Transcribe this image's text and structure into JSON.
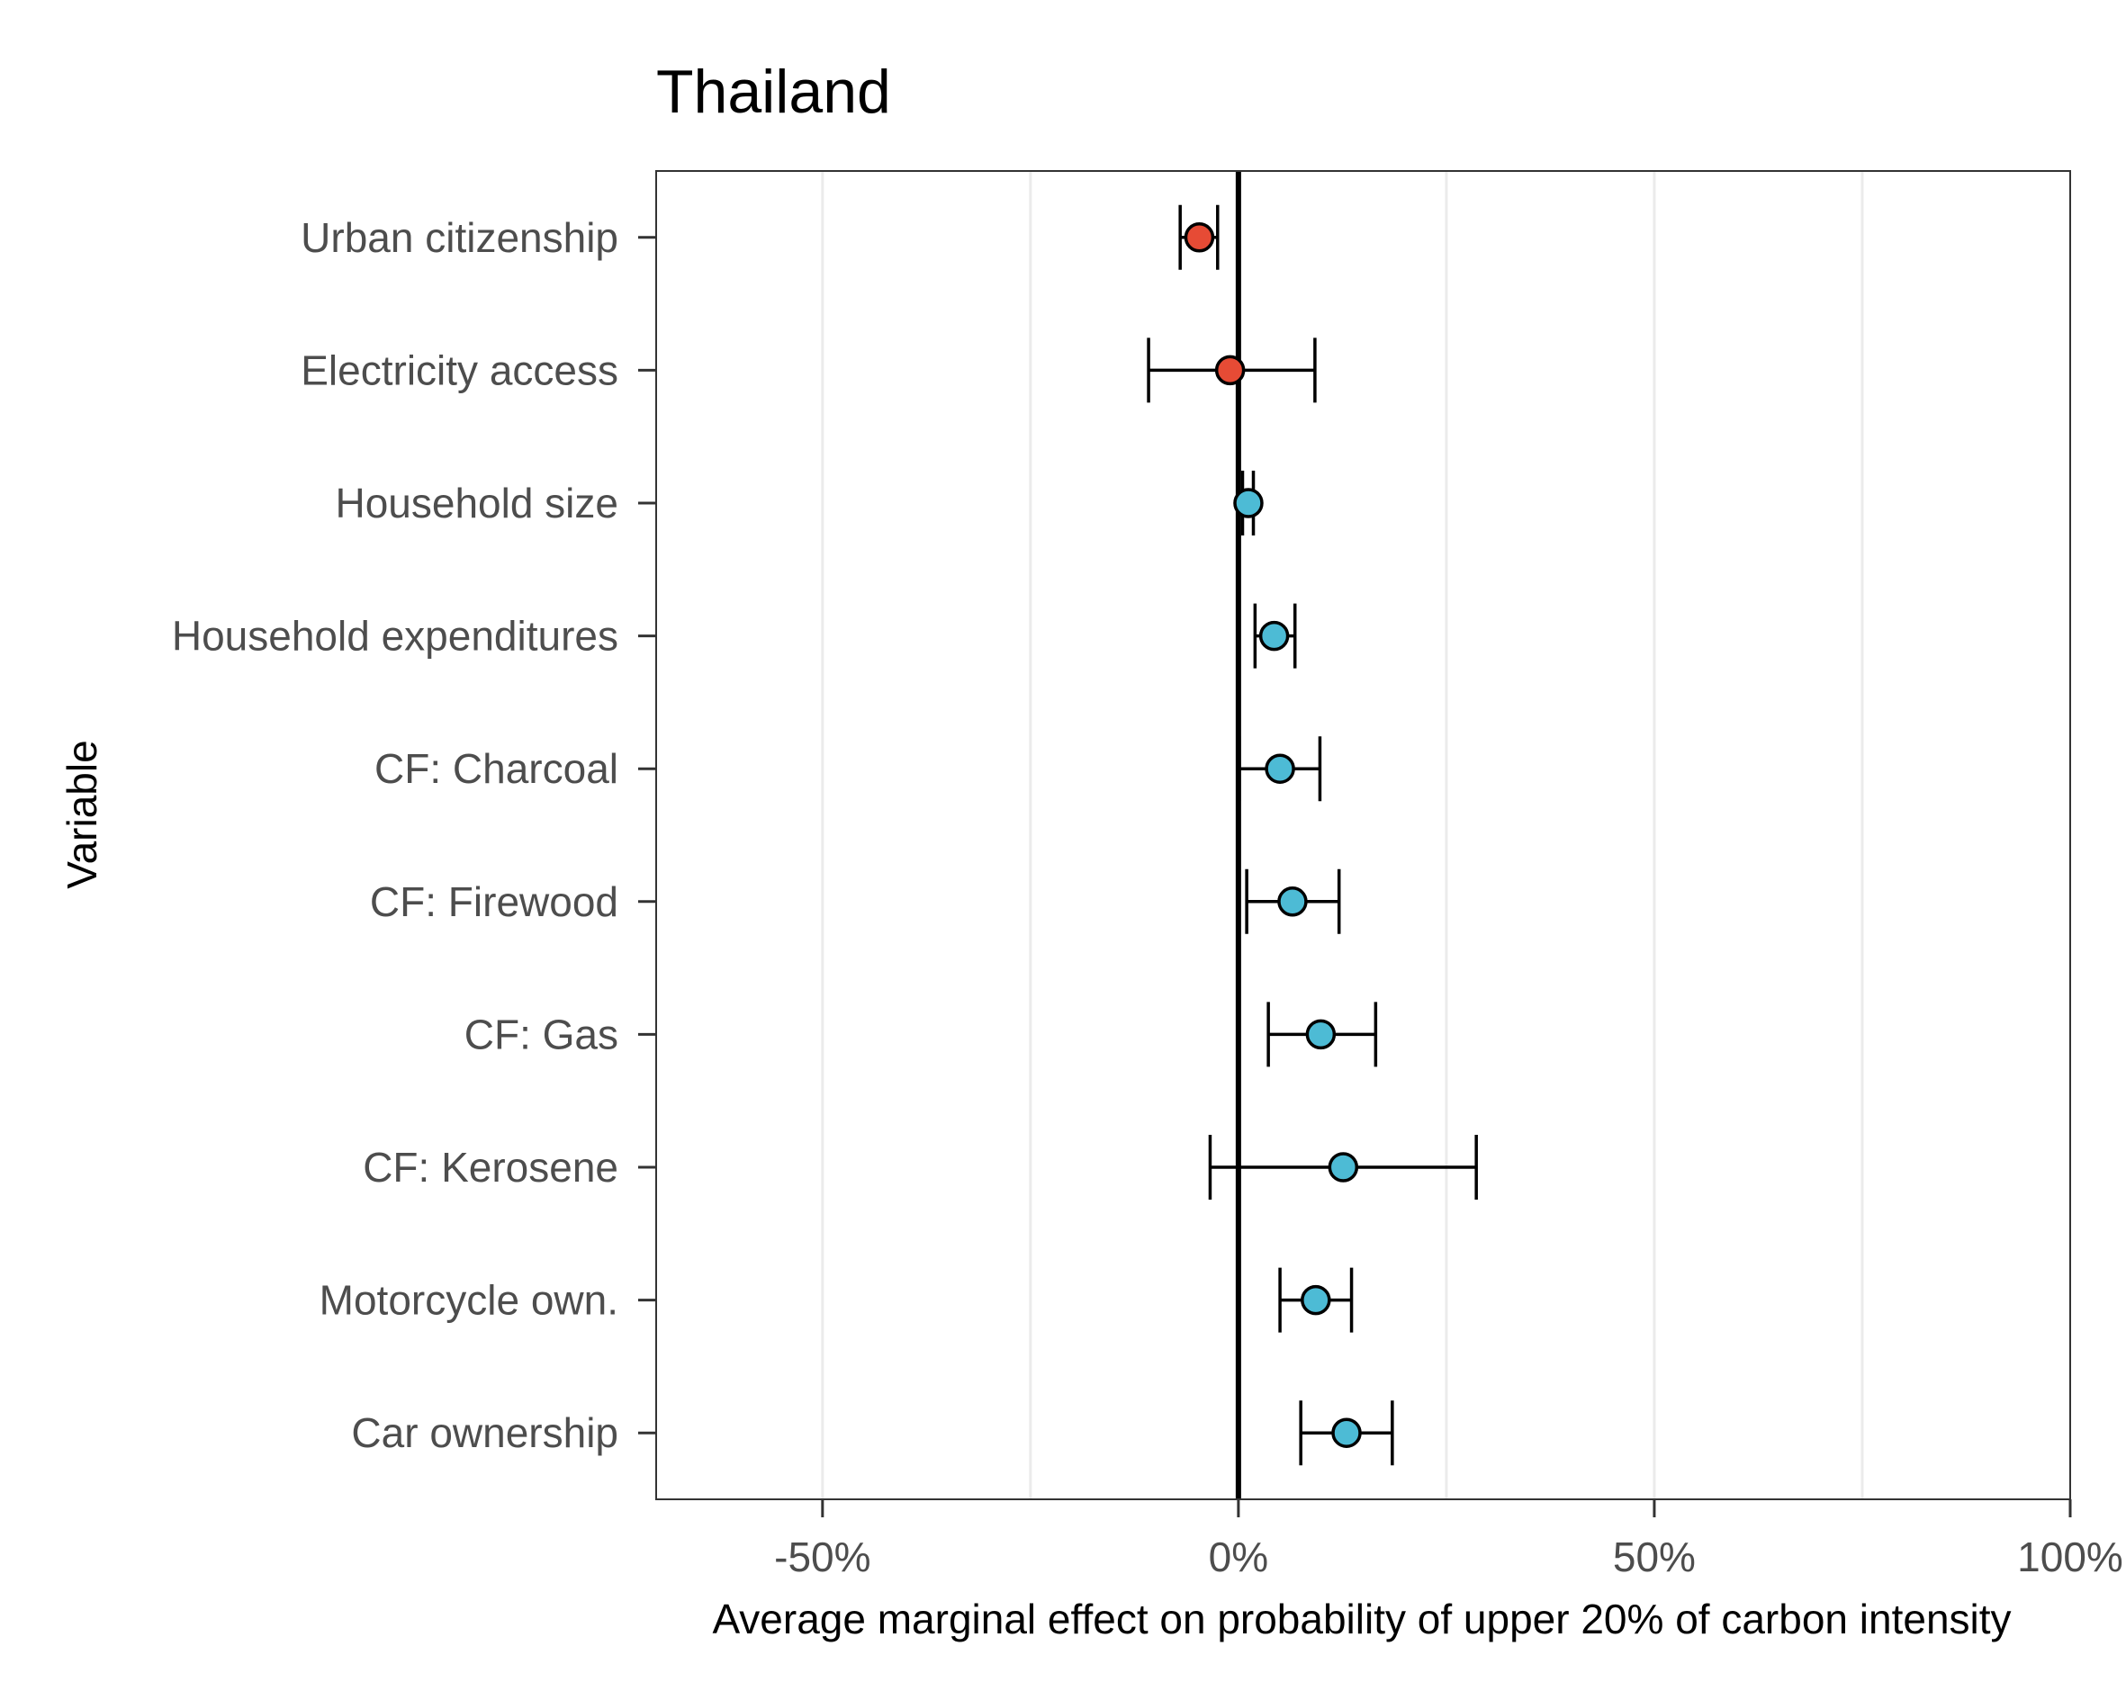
{
  "chart_data": {
    "type": "scatter",
    "title": "Thailand",
    "xlabel": "Average marginal effect on probability of upper 20% of carbon intensity",
    "ylabel": "Variable",
    "xlim": [
      -70,
      100
    ],
    "x_ticks": [
      -50,
      0,
      50,
      100
    ],
    "x_tick_labels": [
      "-50%",
      "0%",
      "50%",
      "100%"
    ],
    "x_minor_grid": [
      -25,
      25,
      75
    ],
    "reference_line": 0,
    "grid": true,
    "legend": "none",
    "colors": {
      "negative": "#e64b35",
      "positive": "#4dbbd5",
      "line": "#000000",
      "grid": "#ebebeb"
    },
    "categories": [
      "Urban citizenship",
      "Electricity access",
      "Household size",
      "Household expenditures",
      "CF: Charcoal",
      "CF: Firewood",
      "CF: Gas",
      "CF: Kerosene",
      "Motorcycle own.",
      "Car ownership"
    ],
    "points": [
      {
        "label": "Urban citizenship",
        "estimate": -4.7,
        "low": -7.0,
        "high": -2.5,
        "sign": "negative"
      },
      {
        "label": "Electricity access",
        "estimate": -1.0,
        "low": -10.8,
        "high": 9.2,
        "sign": "negative"
      },
      {
        "label": "Household size",
        "estimate": 1.2,
        "low": 0.5,
        "high": 1.8,
        "sign": "positive"
      },
      {
        "label": "Household expenditures",
        "estimate": 4.3,
        "low": 2.0,
        "high": 6.8,
        "sign": "positive"
      },
      {
        "label": "CF: Charcoal",
        "estimate": 5.0,
        "low": 0.1,
        "high": 9.8,
        "sign": "positive"
      },
      {
        "label": "CF: Firewood",
        "estimate": 6.5,
        "low": 1.0,
        "high": 12.1,
        "sign": "positive"
      },
      {
        "label": "CF: Gas",
        "estimate": 9.9,
        "low": 3.6,
        "high": 16.5,
        "sign": "positive"
      },
      {
        "label": "CF: Kerosene",
        "estimate": 12.6,
        "low": -3.4,
        "high": 28.6,
        "sign": "positive"
      },
      {
        "label": "Motorcycle own.",
        "estimate": 9.3,
        "low": 5.0,
        "high": 13.6,
        "sign": "positive"
      },
      {
        "label": "Car ownership",
        "estimate": 13.0,
        "low": 7.5,
        "high": 18.5,
        "sign": "positive"
      }
    ]
  }
}
